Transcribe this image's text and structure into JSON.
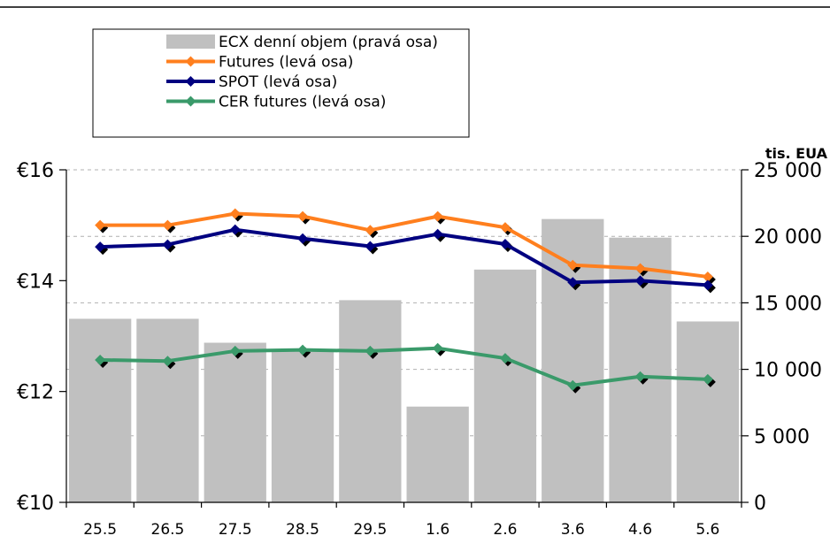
{
  "chart_data": {
    "type": "bar",
    "title": "",
    "unit_label": "tis. EUA",
    "categories": [
      "25.5",
      "26.5",
      "27.5",
      "28.5",
      "29.5",
      "1.6",
      "2.6",
      "3.6",
      "4.6",
      "5.6"
    ],
    "left_axis": {
      "ylim": [
        10,
        16
      ],
      "ticks": [
        10,
        12,
        14,
        16
      ],
      "tick_labels": [
        "€10",
        "€12",
        "€14",
        "€16"
      ]
    },
    "right_axis": {
      "ylim": [
        0,
        25000
      ],
      "ticks": [
        0,
        5000,
        10000,
        15000,
        20000,
        25000
      ],
      "tick_labels": [
        "0",
        "5 000",
        "10 000",
        "15 000",
        "20 000",
        "25 000"
      ]
    },
    "grid": "horizontal dashed",
    "legend_position": "top-left",
    "series": [
      {
        "name": "ECX denní objem (pravá osa)",
        "kind": "bar",
        "axis": "right",
        "color": "#c0c0c0",
        "values": [
          13800,
          13800,
          12000,
          11500,
          15200,
          7200,
          17500,
          21300,
          19900,
          13600
        ]
      },
      {
        "name": "Futures (levá osa)",
        "kind": "line",
        "axis": "left",
        "color": "#ff7f1e",
        "values": [
          15.0,
          15.0,
          15.21,
          15.16,
          14.91,
          15.16,
          14.96,
          14.28,
          14.22,
          14.07
        ]
      },
      {
        "name": "SPOT (levá osa)",
        "kind": "line",
        "axis": "left",
        "color": "#000080",
        "values": [
          14.61,
          14.65,
          14.92,
          14.76,
          14.62,
          14.84,
          14.66,
          13.97,
          14.0,
          13.92
        ]
      },
      {
        "name": "CER futures (levá osa)",
        "kind": "line",
        "axis": "left",
        "color": "#3a9a6a",
        "values": [
          12.57,
          12.55,
          12.73,
          12.75,
          12.73,
          12.78,
          12.6,
          12.11,
          12.27,
          12.22
        ]
      }
    ]
  }
}
